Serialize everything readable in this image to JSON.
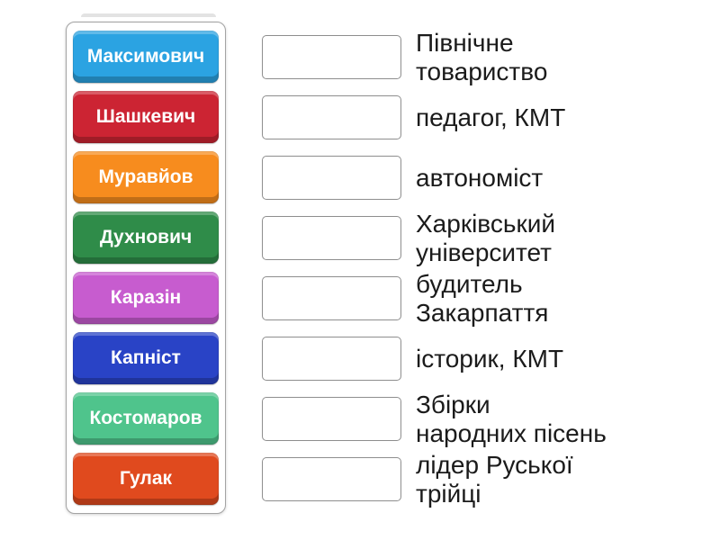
{
  "activity_type": "match-up",
  "colors": {
    "background": "#ffffff",
    "tile_text": "#ffffff",
    "clue_text": "#1b1b1b",
    "panel_border": "#a3a3a3",
    "drop_zone_border": "#8e8e8e"
  },
  "left_panel": {
    "tiles": [
      {
        "label": "Максимович",
        "color": "#2ba3e2"
      },
      {
        "label": "Шашкевич",
        "color": "#cc2433"
      },
      {
        "label": "Муравйов",
        "color": "#f78c1e"
      },
      {
        "label": "Духнович",
        "color": "#2f8c49"
      },
      {
        "label": "Каразін",
        "color": "#c75ccf"
      },
      {
        "label": "Капніст",
        "color": "#2943c6"
      },
      {
        "label": "Костомаров",
        "color": "#4fc48c"
      },
      {
        "label": "Гулак",
        "color": "#e04a1e"
      }
    ]
  },
  "right_panel": {
    "rows": [
      {
        "clue": "Північне\nтовариство"
      },
      {
        "clue": "педагог, КМТ"
      },
      {
        "clue": "автономіст"
      },
      {
        "clue": "Харківський\nуніверситет"
      },
      {
        "clue": "будитель\nЗакарпаття"
      },
      {
        "clue": "історик, КМТ"
      },
      {
        "clue": "Збірки\nнародних пісень"
      },
      {
        "clue": "лідер Руської\nтрійці"
      }
    ]
  }
}
